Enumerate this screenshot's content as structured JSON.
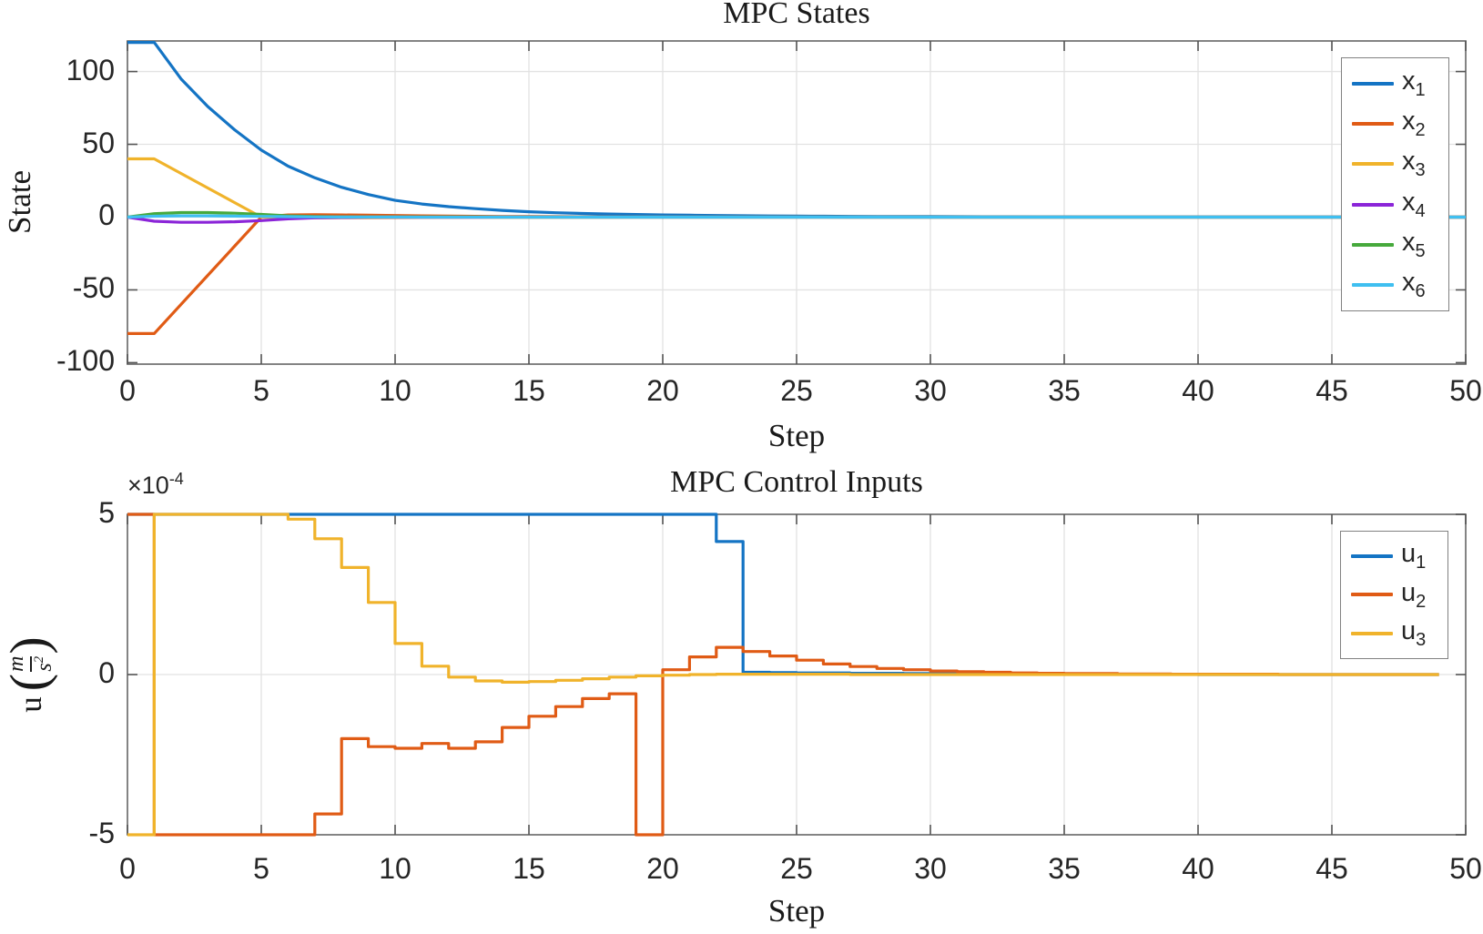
{
  "figure": {
    "background": "#ffffff",
    "frame_color": "#767676",
    "grid_color": "#e2e2e2",
    "tick_color": "#545454",
    "text_color": "#262626"
  },
  "chart_data": [
    {
      "type": "line",
      "title": "MPC States",
      "xlabel": "Step",
      "ylabel": "State",
      "xlim": [
        0,
        50
      ],
      "ylim": [
        -101,
        121
      ],
      "xticks": [
        0,
        5,
        10,
        15,
        20,
        25,
        30,
        35,
        40,
        45,
        50
      ],
      "yticks": [
        100,
        50,
        0,
        -50,
        -100
      ],
      "grid": true,
      "legend_position": "upper right",
      "x_values": "integer steps 0..50 (index of values array)",
      "series": [
        {
          "name": "x1",
          "base": "x",
          "sub": "1",
          "color": "#1474C4",
          "values": [
            120,
            120,
            95,
            76,
            60,
            46,
            35,
            27,
            20.5,
            15.5,
            11.5,
            9,
            7.2,
            5.8,
            4.6,
            3.7,
            3,
            2.5,
            2.1,
            1.8,
            1.5,
            1.3,
            1.1,
            0.95,
            0.8,
            0.7,
            0.6,
            0.5,
            0.45,
            0.4,
            0.35,
            0.3,
            0.26,
            0.22,
            0.19,
            0.16,
            0.13,
            0.11,
            0.09,
            0.08,
            0.06,
            0.05,
            0.04,
            0.04,
            0.03,
            0.03,
            0.02,
            0.02,
            0.01,
            0.01,
            0.01
          ]
        },
        {
          "name": "x2",
          "base": "x",
          "sub": "2",
          "color": "#E05B15",
          "values": [
            -80,
            -80,
            -60,
            -40,
            -20,
            0,
            1.5,
            1.6,
            1.5,
            1.3,
            1.1,
            0.9,
            0.7,
            0.55,
            0.45,
            0.35,
            0.28,
            0.22,
            0.17,
            0.13,
            0.1,
            0.08,
            0.06,
            0.05,
            0.04,
            0.03,
            0.03,
            0.02,
            0.02,
            0.01,
            0.01,
            0.01,
            0.01,
            0,
            0,
            0,
            0,
            0,
            0,
            0,
            0,
            0,
            0,
            0,
            0,
            0,
            0,
            0,
            0,
            0,
            0
          ]
        },
        {
          "name": "x3",
          "base": "x",
          "sub": "3",
          "color": "#F0B32B",
          "values": [
            40,
            40,
            30,
            20,
            10,
            0,
            -0.4,
            -0.5,
            -0.45,
            -0.4,
            -0.32,
            -0.26,
            -0.2,
            -0.16,
            -0.12,
            -0.09,
            -0.07,
            -0.05,
            -0.04,
            -0.03,
            -0.02,
            -0.02,
            -0.01,
            -0.01,
            -0.01,
            0,
            0,
            0,
            0,
            0,
            0,
            0,
            0,
            0,
            0,
            0,
            0,
            0,
            0,
            0,
            0,
            0,
            0,
            0,
            0,
            0,
            0,
            0,
            0,
            0,
            0
          ]
        },
        {
          "name": "x4",
          "base": "x",
          "sub": "4",
          "color": "#8B25D8",
          "values": [
            0,
            -2.8,
            -3.6,
            -3.6,
            -3.2,
            -2.4,
            -1.2,
            -0.5,
            -0.25,
            -0.15,
            -0.1,
            -0.07,
            -0.05,
            -0.04,
            -0.03,
            -0.02,
            -0.02,
            -0.01,
            -0.01,
            -0.01,
            0,
            0,
            0,
            0,
            0,
            0,
            0,
            0,
            0,
            0,
            0,
            0,
            0,
            0,
            0,
            0,
            0,
            0,
            0,
            0,
            0,
            0,
            0,
            0,
            0,
            0,
            0,
            0,
            0,
            0,
            0
          ]
        },
        {
          "name": "x5",
          "base": "x",
          "sub": "5",
          "color": "#46A93C",
          "values": [
            0,
            2.4,
            3.1,
            3.1,
            2.7,
            1.9,
            0.9,
            0.4,
            0.2,
            0.12,
            0.08,
            0.05,
            0.04,
            0.03,
            0.02,
            0.02,
            0.01,
            0.01,
            0.01,
            0,
            0,
            0,
            0,
            0,
            0,
            0,
            0,
            0,
            0,
            0,
            0,
            0,
            0,
            0,
            0,
            0,
            0,
            0,
            0,
            0,
            0,
            0,
            0,
            0,
            0,
            0,
            0,
            0,
            0,
            0,
            0
          ]
        },
        {
          "name": "x6",
          "base": "x",
          "sub": "6",
          "color": "#3FBFF0",
          "values": [
            0,
            0.6,
            0.9,
            0.9,
            0.7,
            0.5,
            0.3,
            0.15,
            0.08,
            0.05,
            0.03,
            0.02,
            0.01,
            0.01,
            0.01,
            0,
            0,
            0,
            0,
            0,
            0,
            0,
            0,
            0,
            0,
            0,
            0,
            0,
            0,
            0,
            0,
            0,
            0,
            0,
            0,
            0,
            0,
            0,
            0,
            0,
            0,
            0,
            0,
            0,
            0,
            0,
            0,
            0,
            0,
            0,
            0
          ]
        }
      ]
    },
    {
      "type": "stairs",
      "title": "MPC Control Inputs",
      "xlabel": "Step",
      "ylabel": "u (m/s²)",
      "ylabel_parts": {
        "prefix": "u",
        "open": "(",
        "num": "m",
        "den_base": "s",
        "den_exp": "2",
        "close": ")"
      },
      "offset_text": {
        "base": "×10",
        "exp": "-4"
      },
      "value_scale": "1e-4",
      "xlim": [
        0,
        50
      ],
      "ylim": [
        -5,
        5
      ],
      "xticks": [
        0,
        5,
        10,
        15,
        20,
        25,
        30,
        35,
        40,
        45,
        50
      ],
      "yticks": [
        5,
        0,
        -5
      ],
      "grid": true,
      "legend_position": "upper right",
      "x_values": "integer steps 0..49 (index of values array)",
      "series": [
        {
          "name": "u1",
          "base": "u",
          "sub": "1",
          "color": "#1474C4",
          "values": [
            5,
            5,
            5,
            5,
            5,
            5,
            5,
            5,
            5,
            5,
            5,
            5,
            5,
            5,
            5,
            5,
            5,
            5,
            5,
            5,
            5,
            5,
            4.15,
            0.07,
            0.06,
            0.05,
            0.05,
            0.04,
            0.04,
            0.03,
            0.03,
            0.02,
            0.02,
            0.02,
            0.01,
            0.01,
            0.01,
            0.01,
            0.01,
            0.01,
            0,
            0,
            0,
            0,
            0,
            0,
            0,
            0,
            0,
            0
          ]
        },
        {
          "name": "u2",
          "base": "u",
          "sub": "2",
          "color": "#E05B15",
          "values": [
            5,
            -5,
            -5,
            -5,
            -5,
            -5,
            -5,
            -4.35,
            -2,
            -2.25,
            -2.3,
            -2.15,
            -2.3,
            -2.1,
            -1.65,
            -1.3,
            -1,
            -0.75,
            -0.6,
            -5,
            0.15,
            0.55,
            0.85,
            0.72,
            0.58,
            0.45,
            0.33,
            0.25,
            0.19,
            0.15,
            0.11,
            0.09,
            0.07,
            0.05,
            0.04,
            0.03,
            0.03,
            0.02,
            0.02,
            0.01,
            0.01,
            0.01,
            0.01,
            0,
            0,
            0,
            0,
            0,
            0,
            0
          ]
        },
        {
          "name": "u3",
          "base": "u",
          "sub": "3",
          "color": "#F0B32B",
          "values": [
            -5,
            5,
            5,
            5,
            5,
            5,
            4.85,
            4.24,
            3.34,
            2.25,
            0.97,
            0.26,
            -0.08,
            -0.2,
            -0.24,
            -0.22,
            -0.18,
            -0.13,
            -0.08,
            -0.04,
            -0.02,
            0,
            0.01,
            0.01,
            0.01,
            0.01,
            0.01,
            0,
            0,
            0,
            0,
            0,
            0,
            0,
            0,
            0,
            0,
            0,
            0,
            0,
            0,
            0,
            0,
            0,
            0,
            0,
            0,
            0,
            0,
            0
          ]
        }
      ]
    }
  ]
}
